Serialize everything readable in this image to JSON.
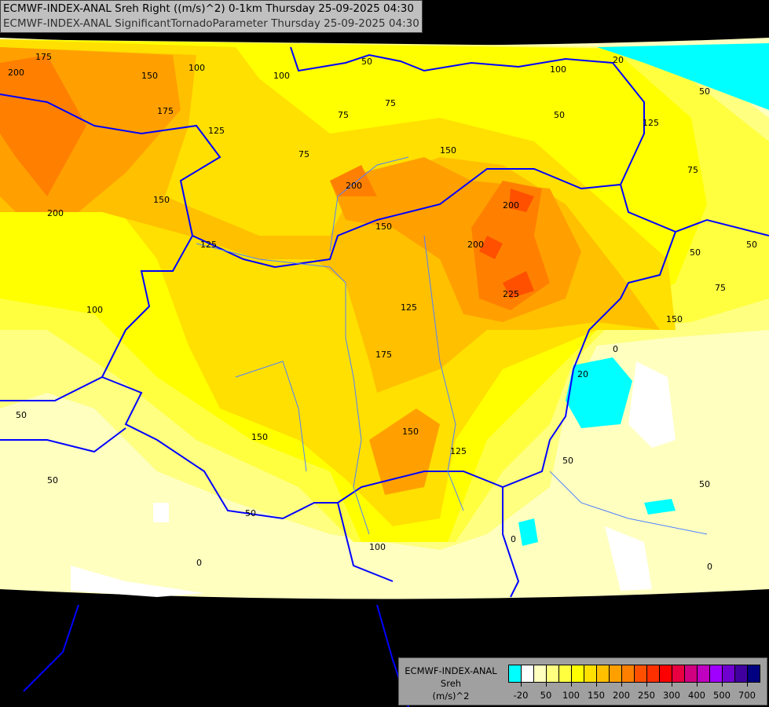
{
  "title": {
    "line1": "ECMWF-INDEX-ANAL Sreh Right ((m/s)^2) 0-1km Thursday 25-09-2025 04:30",
    "line2": "ECMWF-INDEX-ANAL SignificantTornadoParameter Thursday 25-09-2025 04:30"
  },
  "legend": {
    "model": "ECMWF-INDEX-ANAL",
    "variable": "Sreh",
    "unit": "(m/s)^2",
    "colors": [
      "#00ffff",
      "#ffffff",
      "#ffffc0",
      "#ffff80",
      "#ffff40",
      "#ffff00",
      "#ffe000",
      "#ffc000",
      "#ffa000",
      "#ff8000",
      "#ff5000",
      "#ff3000",
      "#ff0000",
      "#e80040",
      "#d00080",
      "#c000c0",
      "#a000ff",
      "#7000d0",
      "#4000a0",
      "#000080"
    ],
    "labels": [
      "-20",
      "50",
      "100",
      "150",
      "200",
      "250",
      "300",
      "400",
      "500",
      "700"
    ]
  },
  "map": {
    "background": "#000000",
    "border_color": "#0000ff",
    "river_color": "#5080ff",
    "contour_labels": [
      "175",
      "200",
      "150",
      "100",
      "100",
      "50",
      "125",
      "175",
      "200",
      "75",
      "75",
      "150",
      "200",
      "150",
      "200",
      "150",
      "125",
      "200",
      "225",
      "175",
      "125",
      "150",
      "100",
      "50",
      "50",
      "75",
      "100",
      "50",
      "125",
      "75",
      "50",
      "150",
      "75",
      "0",
      "50",
      "50",
      "150",
      "125",
      "100",
      "50",
      "0",
      "50",
      "0",
      "50",
      "0",
      "20",
      "20"
    ]
  }
}
